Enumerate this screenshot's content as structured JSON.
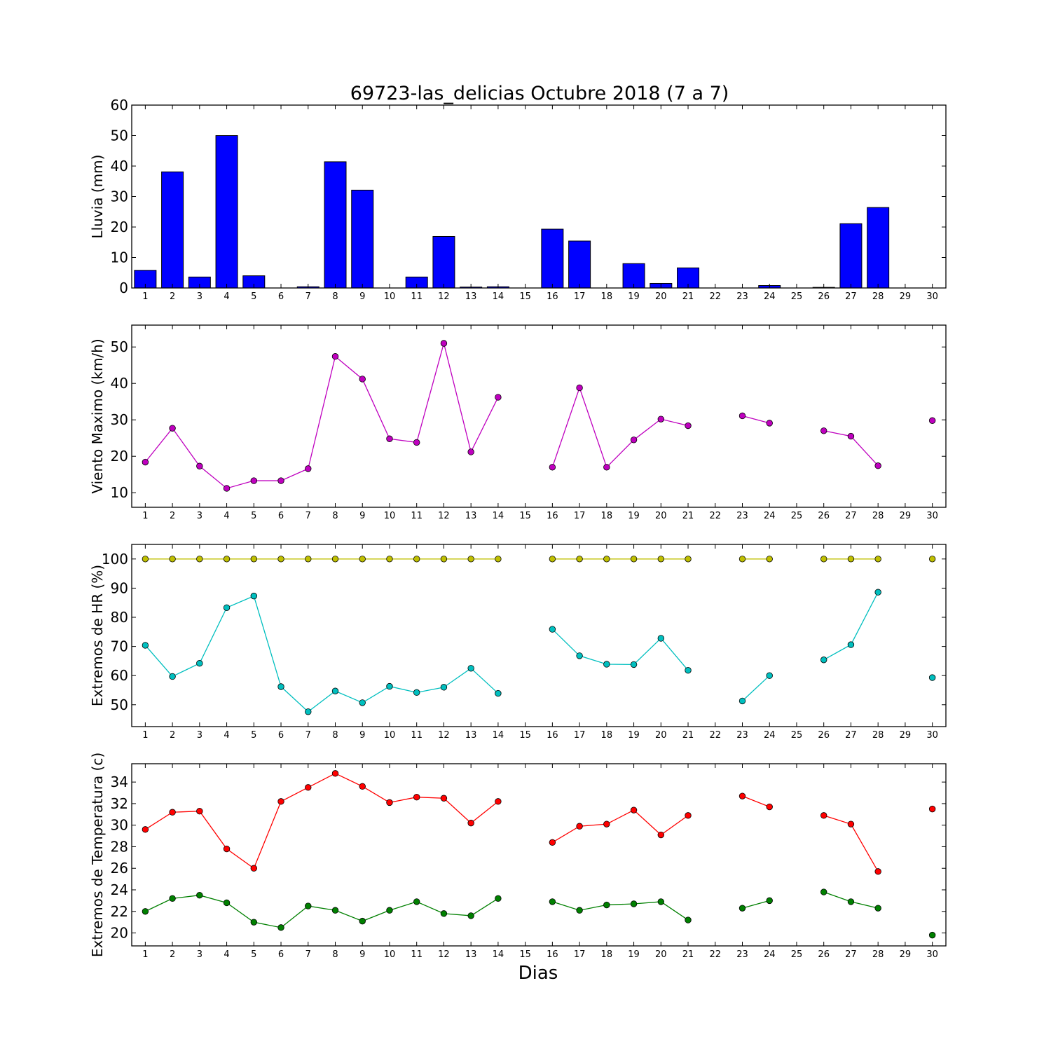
{
  "figure": {
    "title": "69723-las_delicias Octubre 2018  (7 a 7)",
    "xlabel": "Dias"
  },
  "chart_data": [
    {
      "type": "bar",
      "ylabel": "Lluvia (mm)",
      "ylim": [
        0,
        60
      ],
      "yticks": [
        0,
        10,
        20,
        30,
        40,
        50,
        60
      ],
      "xlim": [
        0.5,
        30.5
      ],
      "xticks": [
        1,
        2,
        3,
        4,
        5,
        6,
        7,
        8,
        9,
        10,
        11,
        12,
        13,
        14,
        15,
        16,
        17,
        18,
        19,
        20,
        21,
        22,
        23,
        24,
        25,
        26,
        27,
        28,
        29,
        30
      ],
      "categories": [
        1,
        2,
        3,
        4,
        5,
        6,
        7,
        8,
        9,
        10,
        11,
        12,
        13,
        14,
        15,
        16,
        17,
        18,
        19,
        20,
        21,
        22,
        23,
        24,
        25,
        26,
        27,
        28,
        29,
        30
      ],
      "series": [
        {
          "color": "#0000ff",
          "values": [
            5.8,
            38.1,
            3.6,
            50.0,
            4.0,
            0,
            0.4,
            41.4,
            32.1,
            0,
            3.6,
            16.9,
            0.3,
            0.4,
            0,
            19.3,
            15.4,
            0,
            8.0,
            1.5,
            6.6,
            0,
            0,
            0.8,
            0,
            0.2,
            21.1,
            26.4,
            0,
            0
          ]
        }
      ],
      "grid": false
    },
    {
      "type": "line",
      "ylabel": "Viento Maximo (km/h)",
      "ylim": [
        6,
        56
      ],
      "yticks": [
        10,
        20,
        30,
        40,
        50
      ],
      "xlim": [
        0.5,
        30.5
      ],
      "xticks": [
        1,
        2,
        3,
        4,
        5,
        6,
        7,
        8,
        9,
        10,
        11,
        12,
        13,
        14,
        15,
        16,
        17,
        18,
        19,
        20,
        21,
        22,
        23,
        24,
        25,
        26,
        27,
        28,
        29,
        30
      ],
      "series": [
        {
          "color": "#bf00bf",
          "x": [
            1,
            2,
            3,
            4,
            5,
            6,
            7,
            8,
            9,
            10,
            11,
            12,
            13,
            14,
            15,
            16,
            17,
            18,
            19,
            20,
            21,
            22,
            23,
            24,
            25,
            26,
            27,
            28,
            29,
            30
          ],
          "y": [
            18.4,
            27.7,
            17.3,
            11.2,
            13.3,
            13.3,
            16.6,
            47.4,
            41.2,
            24.8,
            23.8,
            51.0,
            21.2,
            36.2,
            null,
            17.0,
            38.8,
            17.0,
            24.5,
            30.2,
            28.4,
            null,
            31.1,
            29.1,
            null,
            27.0,
            25.5,
            17.4,
            null,
            29.8
          ]
        }
      ],
      "grid": false
    },
    {
      "type": "line",
      "ylabel": "Extremos de HR (%)",
      "ylim": [
        42.5,
        105
      ],
      "yticks": [
        50,
        60,
        70,
        80,
        90,
        100
      ],
      "xlim": [
        0.5,
        30.5
      ],
      "xticks": [
        1,
        2,
        3,
        4,
        5,
        6,
        7,
        8,
        9,
        10,
        11,
        12,
        13,
        14,
        15,
        16,
        17,
        18,
        19,
        20,
        21,
        22,
        23,
        24,
        25,
        26,
        27,
        28,
        29,
        30
      ],
      "series": [
        {
          "color": "#bfbf00",
          "x": [
            1,
            2,
            3,
            4,
            5,
            6,
            7,
            8,
            9,
            10,
            11,
            12,
            13,
            14,
            15,
            16,
            17,
            18,
            19,
            20,
            21,
            22,
            23,
            24,
            25,
            26,
            27,
            28,
            29,
            30
          ],
          "y": [
            100,
            100,
            100,
            100,
            100,
            100,
            100,
            100,
            100,
            100,
            100,
            100,
            100,
            100,
            null,
            100,
            100,
            100,
            100,
            100,
            100,
            null,
            100,
            100,
            null,
            100,
            100,
            100,
            null,
            100
          ]
        },
        {
          "color": "#00bfbf",
          "x": [
            1,
            2,
            3,
            4,
            5,
            6,
            7,
            8,
            9,
            10,
            11,
            12,
            13,
            14,
            15,
            16,
            17,
            18,
            19,
            20,
            21,
            22,
            23,
            24,
            25,
            26,
            27,
            28,
            29,
            30
          ],
          "y": [
            70.4,
            59.7,
            64.2,
            83.3,
            87.3,
            56.2,
            47.6,
            54.7,
            50.7,
            56.3,
            54.2,
            56.0,
            62.5,
            53.9,
            null,
            75.9,
            66.8,
            63.9,
            63.8,
            72.8,
            61.8,
            null,
            51.3,
            60.0,
            null,
            65.4,
            70.6,
            88.6,
            null,
            59.3
          ]
        }
      ],
      "grid": false
    },
    {
      "type": "line",
      "ylabel": "Extremos de Temperatura (c)",
      "ylim": [
        18.8,
        35.7
      ],
      "yticks": [
        20,
        22,
        24,
        26,
        28,
        30,
        32,
        34
      ],
      "xlim": [
        0.5,
        30.5
      ],
      "xticks": [
        1,
        2,
        3,
        4,
        5,
        6,
        7,
        8,
        9,
        10,
        11,
        12,
        13,
        14,
        15,
        16,
        17,
        18,
        19,
        20,
        21,
        22,
        23,
        24,
        25,
        26,
        27,
        28,
        29,
        30
      ],
      "series": [
        {
          "color": "#ff0000",
          "x": [
            1,
            2,
            3,
            4,
            5,
            6,
            7,
            8,
            9,
            10,
            11,
            12,
            13,
            14,
            15,
            16,
            17,
            18,
            19,
            20,
            21,
            22,
            23,
            24,
            25,
            26,
            27,
            28,
            29,
            30
          ],
          "y": [
            29.6,
            31.2,
            31.3,
            27.8,
            26.0,
            32.2,
            33.5,
            34.8,
            33.6,
            32.1,
            32.6,
            32.5,
            30.2,
            32.2,
            null,
            28.4,
            29.9,
            30.1,
            31.4,
            29.1,
            30.9,
            null,
            32.7,
            31.7,
            null,
            30.9,
            30.1,
            25.7,
            null,
            31.5
          ]
        },
        {
          "color": "#008000",
          "x": [
            1,
            2,
            3,
            4,
            5,
            6,
            7,
            8,
            9,
            10,
            11,
            12,
            13,
            14,
            15,
            16,
            17,
            18,
            19,
            20,
            21,
            22,
            23,
            24,
            25,
            26,
            27,
            28,
            29,
            30
          ],
          "y": [
            22.0,
            23.2,
            23.5,
            22.8,
            21.0,
            20.5,
            22.5,
            22.1,
            21.1,
            22.1,
            22.9,
            21.8,
            21.6,
            23.2,
            null,
            22.9,
            22.1,
            22.6,
            22.7,
            22.9,
            21.2,
            null,
            22.3,
            23.0,
            null,
            23.8,
            22.9,
            22.3,
            null,
            19.8
          ]
        }
      ],
      "grid": false
    }
  ]
}
